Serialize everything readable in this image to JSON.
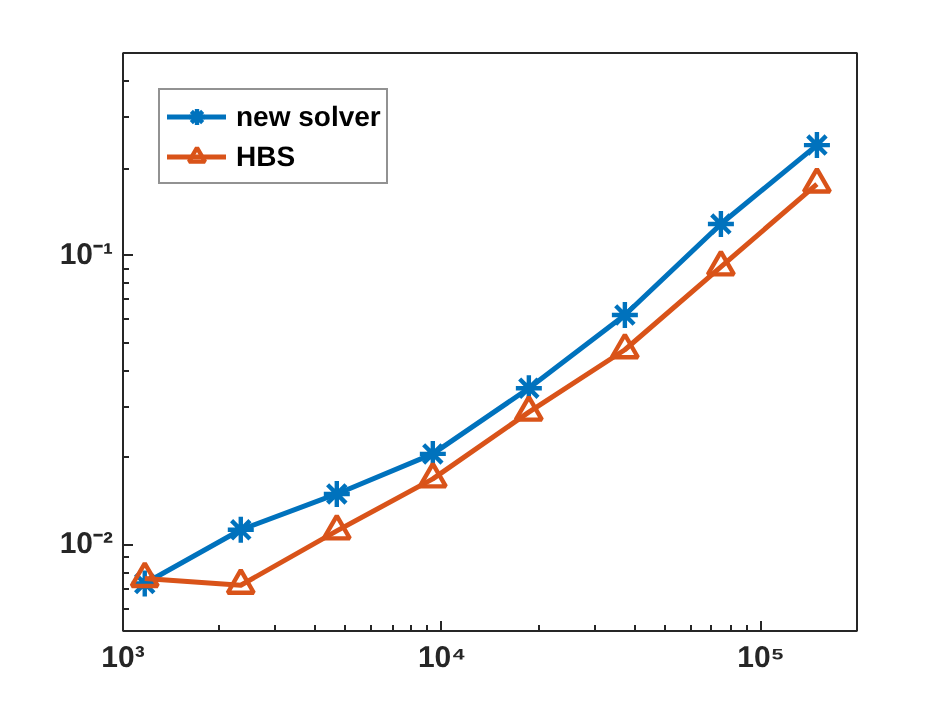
{
  "chart_data": {
    "type": "line",
    "x": [
      1170,
      2340,
      4680,
      9360,
      18720,
      37440,
      74880,
      149760
    ],
    "series": [
      {
        "name": "new solver",
        "color": "#0072bd",
        "marker": "cross",
        "values": [
          0.0073,
          0.0112,
          0.0149,
          0.0205,
          0.0346,
          0.062,
          0.128,
          0.24
        ]
      },
      {
        "name": "HBS",
        "color": "#d95319",
        "marker": "triangle",
        "values": [
          0.0076,
          0.0072,
          0.0111,
          0.0168,
          0.0286,
          0.047,
          0.091,
          0.176
        ]
      }
    ],
    "log": "xy",
    "xlim": [
      1000,
      200000
    ],
    "ylim": [
      0.005,
      0.5
    ],
    "xticks": [
      {
        "value": 1000,
        "label": "10³"
      },
      {
        "value": 10000,
        "label": "10⁴"
      },
      {
        "value": 100000,
        "label": "10⁵"
      }
    ],
    "yticks": [
      {
        "value": 0.01,
        "label": "10⁻²"
      },
      {
        "value": 0.1,
        "label": "10⁻¹"
      }
    ],
    "legend": "top left",
    "grid": false,
    "line_style": "solid"
  }
}
